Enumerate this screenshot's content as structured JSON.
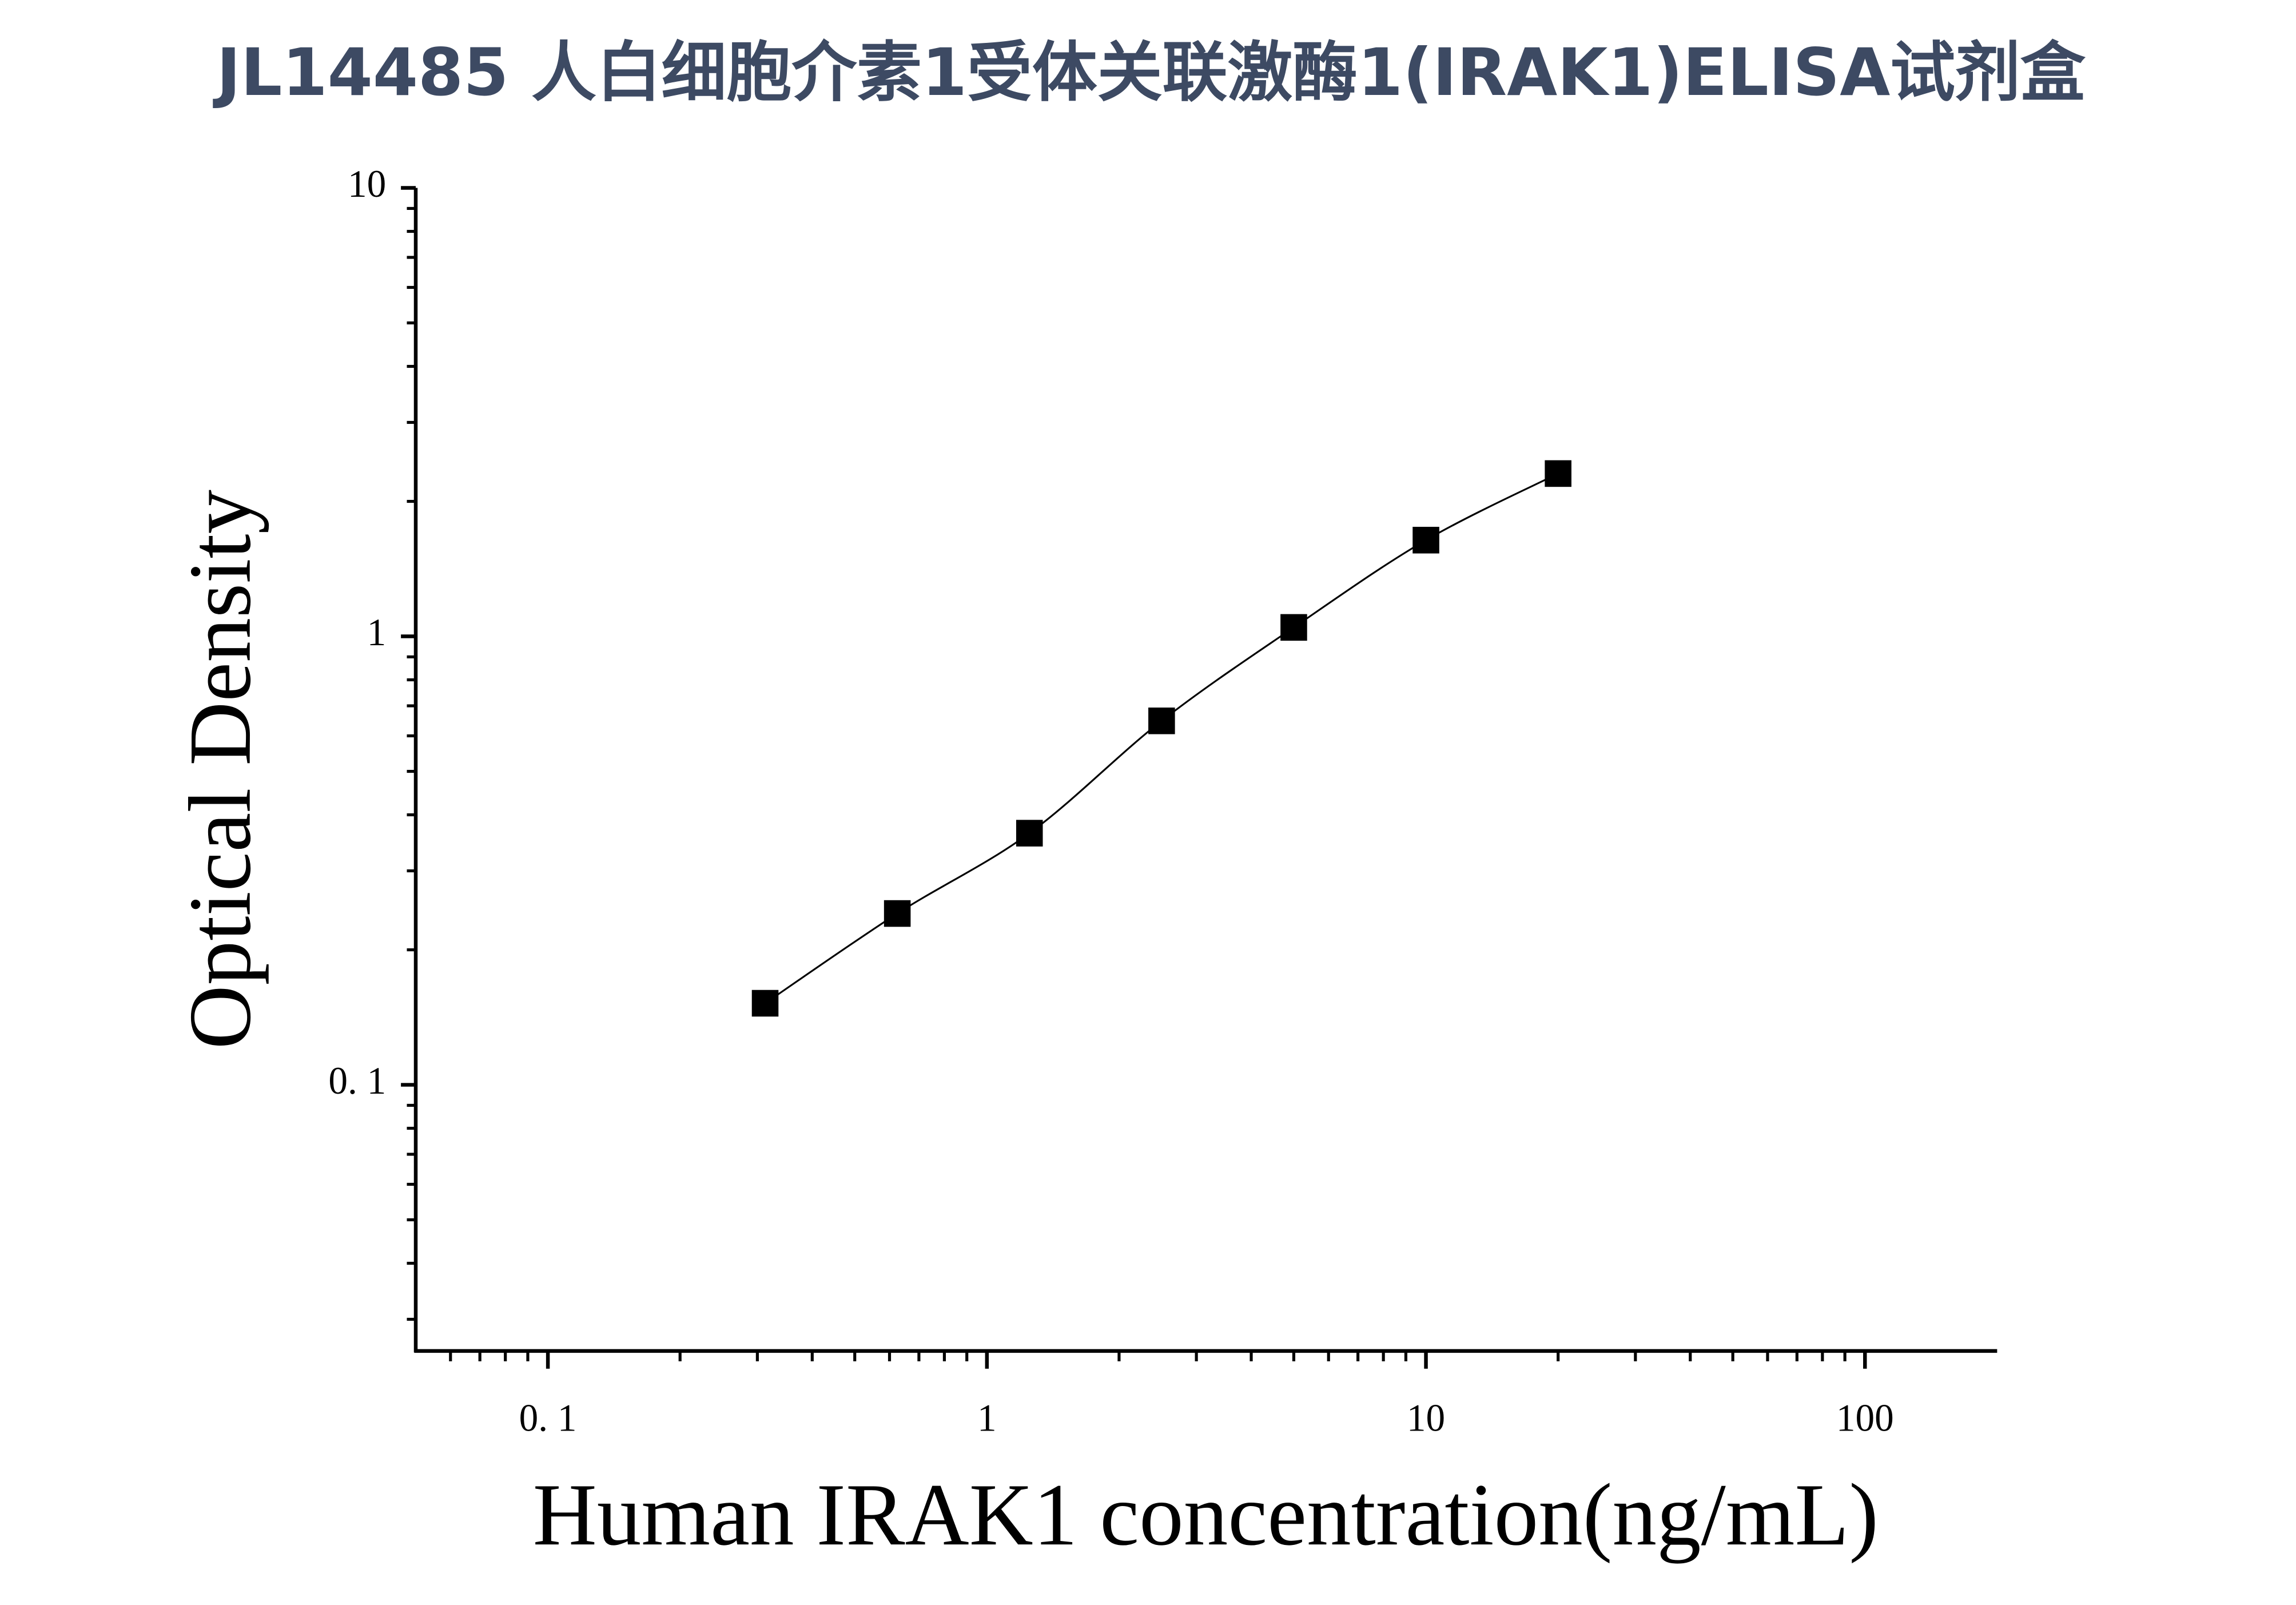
{
  "chart_data": {
    "type": "scatter",
    "title": "JL14485 人白细胞介素1受体关联激酶1(IRAK1)ELISA试剂盒",
    "x_label": "Human IRAK1 concentration(ng/mL)",
    "y_label": "Optical Density",
    "x": [
      0.3125,
      0.625,
      1.25,
      2.5,
      5,
      10,
      20
    ],
    "values": [
      0.152,
      0.241,
      0.364,
      0.648,
      1.047,
      1.639,
      2.307
    ],
    "color": "#000000",
    "curve": true,
    "xscale": "log",
    "yscale": "log",
    "xlim": [
      0.05,
      200
    ],
    "ylim": [
      0.0255,
      10
    ],
    "xticks": [
      {
        "value": 0.1,
        "label": "0. 1"
      },
      1,
      10,
      100
    ],
    "yticks": [
      {
        "value": 0.1,
        "label": "0. 1"
      },
      1,
      10
    ],
    "xminorticks": [
      0.06,
      0.07,
      0.08,
      0.09,
      0.2,
      0.3,
      0.4,
      0.5,
      0.6,
      0.7,
      0.8,
      0.9,
      2,
      3,
      4,
      5,
      6,
      7,
      8,
      9,
      20,
      30,
      40,
      50,
      60,
      70,
      80,
      90
    ],
    "yminorticks": [
      0.03,
      0.04,
      0.05,
      0.06,
      0.07,
      0.08,
      0.09,
      0.2,
      0.3,
      0.4,
      0.5,
      0.6,
      0.7,
      0.8,
      0.9,
      2,
      3,
      4,
      5,
      6,
      7,
      8,
      9
    ]
  }
}
